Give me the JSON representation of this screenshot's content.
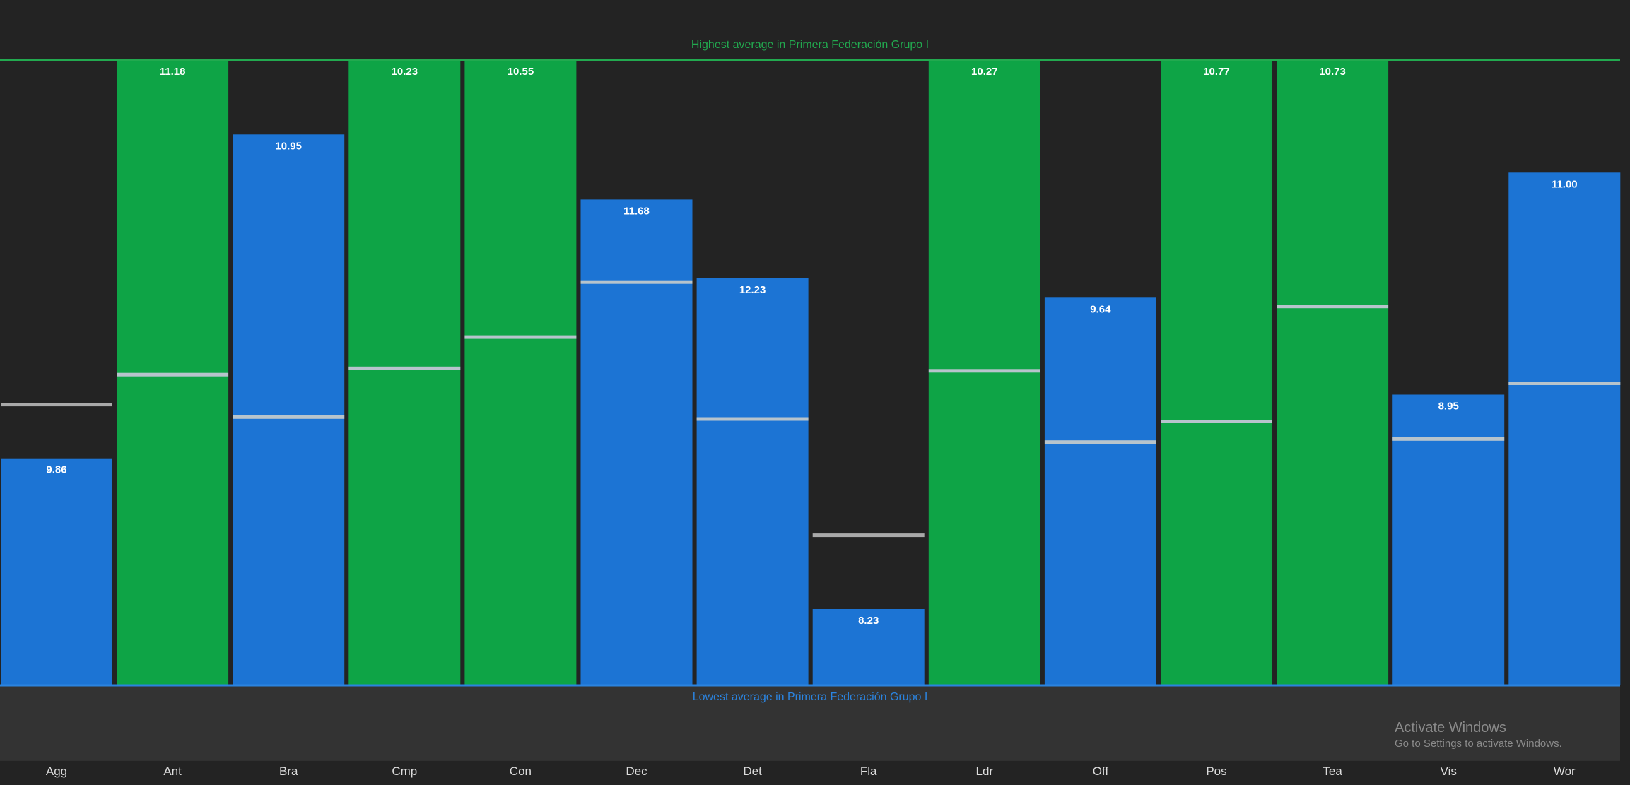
{
  "chart_data": {
    "type": "bar",
    "categories": [
      "Agg",
      "Ant",
      "Bra",
      "Cmp",
      "Con",
      "Dec",
      "Det",
      "Fla",
      "Ldr",
      "Off",
      "Pos",
      "Tea",
      "Vis",
      "Wor"
    ],
    "values": [
      9.86,
      11.18,
      10.95,
      10.23,
      10.55,
      11.68,
      12.23,
      8.23,
      10.27,
      9.64,
      10.77,
      10.73,
      8.95,
      11.0
    ],
    "value_labels": [
      "9.86",
      "11.18",
      "10.95",
      "10.23",
      "10.55",
      "11.68",
      "12.23",
      "8.23",
      "10.27",
      "9.64",
      "10.77",
      "10.73",
      "8.95",
      "11.00"
    ],
    "bar_fraction": [
      0.363,
      1.0,
      0.881,
      1.0,
      1.0,
      0.777,
      0.651,
      0.122,
      1.0,
      0.62,
      1.0,
      1.0,
      0.465,
      0.82
    ],
    "average_fraction": [
      0.449,
      0.497,
      0.429,
      0.507,
      0.557,
      0.645,
      0.426,
      0.24,
      0.503,
      0.389,
      0.422,
      0.606,
      0.394,
      0.483
    ],
    "bar_status": [
      "normal",
      "highest",
      "normal",
      "highest",
      "highest",
      "normal",
      "normal",
      "normal",
      "highest",
      "normal",
      "highest",
      "highest",
      "normal",
      "normal"
    ],
    "top_reference_label": "Highest average in Primera Federación Grupo I",
    "bottom_reference_label": "Lowest average in Primera Federación Grupo I",
    "xlabel": "",
    "ylabel": "",
    "grid": false,
    "legend": "none"
  },
  "colors": {
    "background": "#232323",
    "lower_band": "#333333",
    "normal_bar": "#1c74d4",
    "highest_bar": "#0ea446",
    "top_line": "#22a94f",
    "bottom_line": "#2b84e0",
    "marker_on_bar": "#b7c4cc",
    "marker_on_background": "#a9a9a9",
    "value_text": "#ffffff",
    "tick_text": "#dddddd"
  },
  "watermark": {
    "title": "Activate Windows",
    "subtitle": "Go to Settings to activate Windows."
  }
}
